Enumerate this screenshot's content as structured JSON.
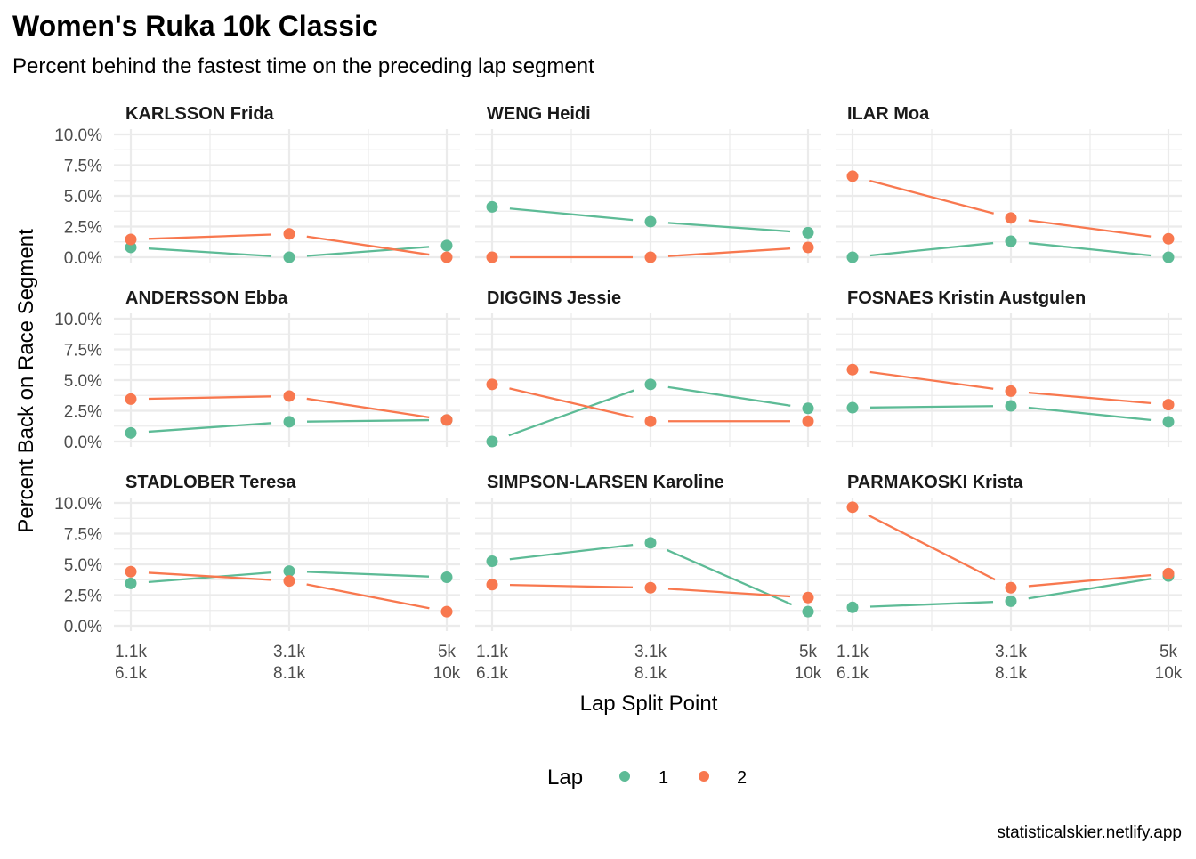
{
  "chart_data": {
    "type": "line",
    "title": "Women's Ruka 10k Classic",
    "subtitle": "Percent behind the fastest time on the preceding lap segment",
    "xlabel": "Lap Split Point",
    "ylabel": "Percent Back on Race Segment",
    "caption": "statisticalskier.netlify.app",
    "x_tick_labels": [
      [
        "1.1k",
        "6.1k"
      ],
      [
        "3.1k",
        "8.1k"
      ],
      [
        "5k",
        "10k"
      ]
    ],
    "y_ticks": [
      0,
      2.5,
      5,
      7.5,
      10
    ],
    "y_tick_labels": [
      "0.0%",
      "2.5%",
      "5.0%",
      "7.5%",
      "10.0%"
    ],
    "ylim": [
      0,
      10
    ],
    "grid": true,
    "legend": {
      "title": "Lap",
      "position": "bottom",
      "entries": [
        {
          "label": "1",
          "color": "#66C2A5"
        },
        {
          "label": "2",
          "color": "#FC8D62"
        }
      ]
    },
    "series_colors": {
      "1": "#5DBB96",
      "2": "#F8784F"
    },
    "panels": [
      {
        "name": "KARLSSON Frida",
        "lap1": [
          0.8,
          0.0,
          0.95
        ],
        "lap2": [
          1.45,
          1.9,
          0.0
        ]
      },
      {
        "name": "WENG Heidi",
        "lap1": [
          4.1,
          2.9,
          2.0
        ],
        "lap2": [
          0.0,
          0.0,
          0.8
        ]
      },
      {
        "name": "ILAR Moa",
        "lap1": [
          0.0,
          1.3,
          0.0
        ],
        "lap2": [
          6.6,
          3.2,
          1.5
        ]
      },
      {
        "name": "ANDERSSON Ebba",
        "lap1": [
          0.7,
          1.6,
          1.75
        ],
        "lap2": [
          3.45,
          3.7,
          1.75
        ]
      },
      {
        "name": "DIGGINS Jessie",
        "lap1": [
          0.0,
          4.65,
          2.7
        ],
        "lap2": [
          4.65,
          1.65,
          1.65
        ]
      },
      {
        "name": "FOSNAES Kristin Austgulen",
        "lap1": [
          2.75,
          2.9,
          1.6
        ],
        "lap2": [
          5.85,
          4.1,
          3.0
        ]
      },
      {
        "name": "STADLOBER Teresa",
        "lap1": [
          3.45,
          4.45,
          3.95
        ],
        "lap2": [
          4.4,
          3.65,
          1.15
        ]
      },
      {
        "name": "SIMPSON-LARSEN Karoline",
        "lap1": [
          5.25,
          6.75,
          1.15
        ],
        "lap2": [
          3.35,
          3.1,
          2.3
        ]
      },
      {
        "name": "PARMAKOSKI Krista",
        "lap1": [
          1.5,
          2.0,
          4.05
        ],
        "lap2": [
          9.65,
          3.1,
          4.25
        ]
      }
    ]
  }
}
